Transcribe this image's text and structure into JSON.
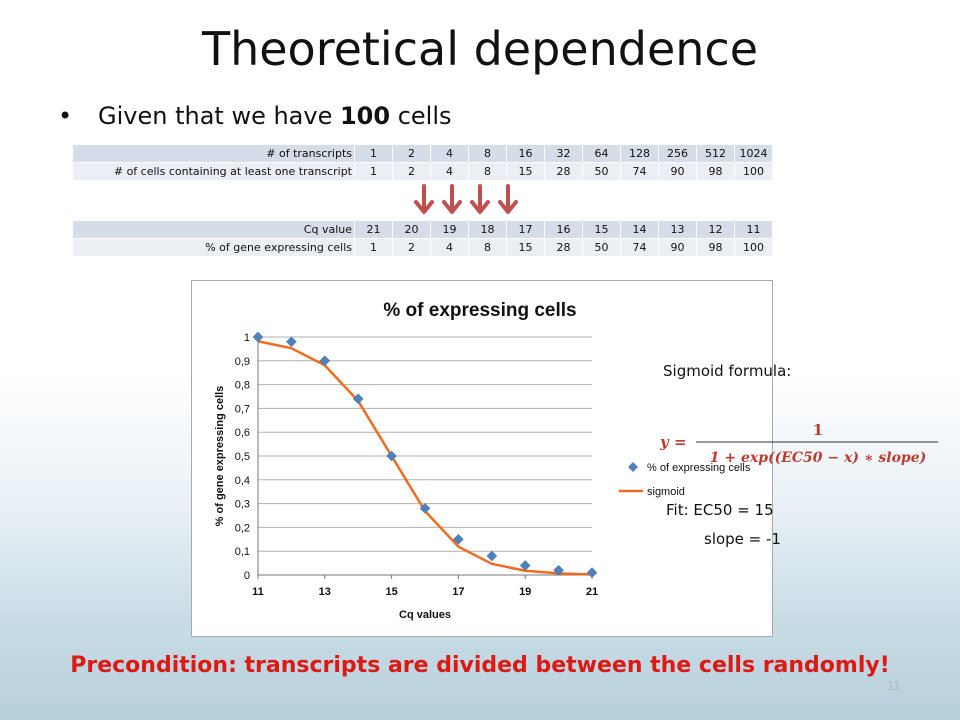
{
  "title": "Theoretical dependence",
  "bullet": {
    "prefix": "Given that we have ",
    "bold": "100",
    "suffix": " cells"
  },
  "table1": {
    "rows": [
      {
        "label": "# of transcripts",
        "values": [
          "1",
          "2",
          "4",
          "8",
          "16",
          "32",
          "64",
          "128",
          "256",
          "512",
          "1024"
        ]
      },
      {
        "label": "# of cells containing at least one transcript",
        "values": [
          "1",
          "2",
          "4",
          "8",
          "15",
          "28",
          "50",
          "74",
          "90",
          "98",
          "100"
        ]
      }
    ]
  },
  "table2": {
    "rows": [
      {
        "label": "Cq value",
        "values": [
          "21",
          "20",
          "19",
          "18",
          "17",
          "16",
          "15",
          "14",
          "13",
          "12",
          "11"
        ]
      },
      {
        "label": "% of gene expressing cells",
        "values": [
          "1",
          "2",
          "4",
          "8",
          "15",
          "28",
          "50",
          "74",
          "90",
          "98",
          "100"
        ]
      }
    ]
  },
  "arrow_color": "#c0504d",
  "chart_data": {
    "type": "scatter",
    "title": "% of expressing cells",
    "xlabel": "Cq values",
    "ylabel": "% of gene expressing cells",
    "xlim": [
      11,
      21
    ],
    "ylim": [
      0,
      1
    ],
    "xticks": [
      "11",
      "13",
      "15",
      "17",
      "19",
      "21"
    ],
    "yticks": [
      "0",
      "0,1",
      "0,2",
      "0,3",
      "0,4",
      "0,5",
      "0,6",
      "0,7",
      "0,8",
      "0,9",
      "1"
    ],
    "grid": true,
    "legend_position": "right",
    "series": [
      {
        "name": "% of expressing cells",
        "kind": "scatter",
        "color": "#4f81bd",
        "x": [
          11,
          12,
          13,
          14,
          15,
          16,
          17,
          18,
          19,
          20,
          21
        ],
        "y": [
          1,
          0.98,
          0.9,
          0.74,
          0.5,
          0.28,
          0.15,
          0.08,
          0.04,
          0.02,
          0.01
        ]
      },
      {
        "name": "sigmoid",
        "kind": "line",
        "color": "#f26b1d",
        "x": [
          11,
          12,
          13,
          14,
          15,
          16,
          17,
          18,
          19,
          20,
          21
        ],
        "y": [
          0.982,
          0.953,
          0.881,
          0.731,
          0.5,
          0.269,
          0.119,
          0.047,
          0.018,
          0.007,
          0.002
        ]
      }
    ]
  },
  "sigmoid": {
    "heading": "Sigmoid formula:",
    "lhs": "y =",
    "numerator": "1",
    "denominator": "1 + exp((EC50 − x) ∗ slope)",
    "fit_ec50": "Fit:  EC50 = 15",
    "fit_slope": "slope = -1"
  },
  "precondition": "Precondition: transcripts are divided between the cells randomly!",
  "page_number": "11"
}
